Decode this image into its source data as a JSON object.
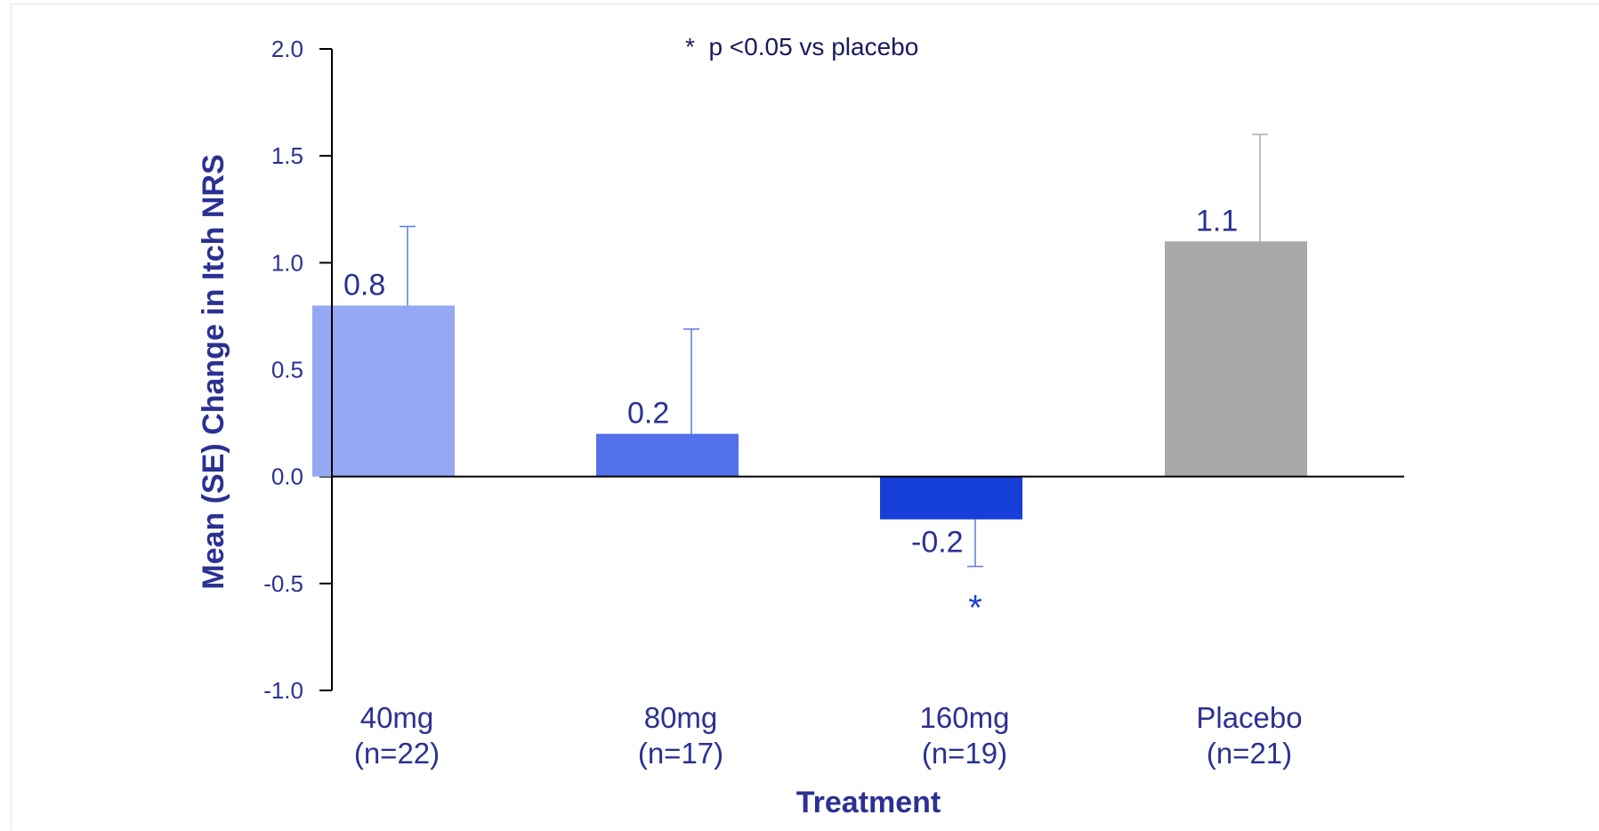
{
  "chart_data": {
    "type": "bar",
    "categories": [
      "40mg",
      "80mg",
      "160mg",
      "Placebo"
    ],
    "category_sublabels": [
      "(n=22)",
      "(n=17)",
      "(n=19)",
      "(n=21)"
    ],
    "values": [
      0.8,
      0.2,
      -0.2,
      1.1
    ],
    "value_labels": [
      "0.8",
      "0.2",
      "-0.2",
      "1.1"
    ],
    "errors": [
      0.37,
      0.49,
      0.22,
      0.5
    ],
    "bar_colors": [
      "#95a8f3",
      "#5271ea",
      "#163ed8",
      "#a9a9a9"
    ],
    "error_colors": [
      "#5f78e0",
      "#5f78e0",
      "#5f78e0",
      "#a9a9a9"
    ],
    "significance": [
      false,
      false,
      true,
      false
    ],
    "significance_marker": "*",
    "annotation": "*  p <0.05 vs placebo",
    "xlabel": "Treatment",
    "ylabel": "Mean (SE) Change in Itch NRS",
    "ylim": [
      -1.0,
      2.0
    ],
    "yticks": [
      "2.0",
      "1.5",
      "1.0",
      "0.5",
      "0.0",
      "-0.5",
      "-1.0"
    ],
    "ytick_values": [
      2.0,
      1.5,
      1.0,
      0.5,
      0.0,
      -0.5,
      -1.0
    ],
    "grid": false,
    "legend": "none"
  }
}
